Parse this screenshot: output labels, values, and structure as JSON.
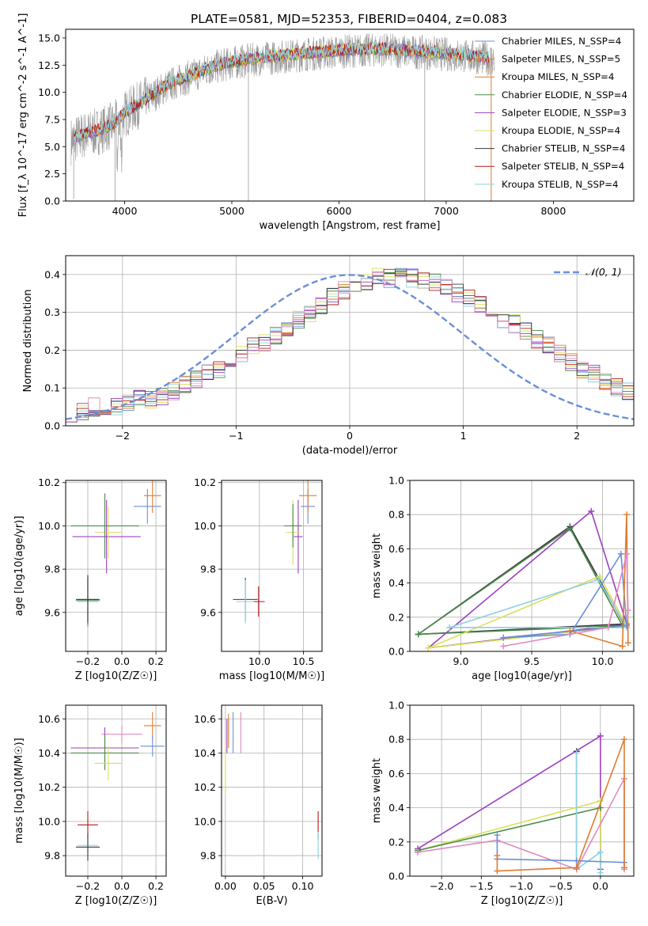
{
  "figure": {
    "title": "PLATE=0581, MJD=52353, FIBERID=0404, z=0.083"
  },
  "colors": {
    "c0": "#6a8fd8",
    "c1": "#e07b2e",
    "c2": "#9a9a9a",
    "c3": "#4a8a4a",
    "c4": "#9c3fc0",
    "c5": "#d7e05a",
    "c6": "#3a3a3a",
    "c7": "#b21a1a",
    "c8": "#8fd0e0"
  },
  "chart_data": [
    {
      "id": "spectrum",
      "type": "line",
      "xlabel": "wavelength [Angstrom, rest frame]",
      "ylabel": "Flux [f_λ 10^-17 erg cm^-2 s^-1 A^-1]",
      "xlim": [
        3450,
        8750
      ],
      "ylim": [
        0,
        15.8
      ],
      "xticks": [
        4000,
        5000,
        6000,
        7000,
        8000
      ],
      "yticks": [
        0.0,
        2.5,
        5.0,
        7.5,
        10.0,
        12.5,
        15.0
      ],
      "legend_position": "top-right",
      "series": [
        {
          "name": "Chabrier MILES, N_SSP=4"
        },
        {
          "name": "Salpeter MILES, N_SSP=5"
        },
        {
          "name": "Kroupa MILES, N_SSP=4"
        },
        {
          "name": "Chabrier ELODIE, N_SSP=4"
        },
        {
          "name": "Salpeter ELODIE, N_SSP=3"
        },
        {
          "name": "Kroupa ELODIE, N_SSP=4"
        },
        {
          "name": "Chabrier STELIB, N_SSP=4"
        },
        {
          "name": "Salpeter STELIB, N_SSP=4"
        },
        {
          "name": "Kroupa STELIB, N_SSP=4"
        }
      ],
      "model_continuum": {
        "x": [
          3500,
          3600,
          3750,
          3900,
          4000,
          4200,
          4400,
          4600,
          4800,
          5000,
          5200,
          5500,
          5800,
          6100,
          6400,
          6700,
          7000,
          7300,
          7450
        ],
        "y": [
          5.5,
          6.0,
          6.4,
          7.0,
          8.0,
          9.3,
          10.6,
          11.4,
          12.2,
          12.7,
          13.0,
          13.3,
          13.6,
          13.8,
          13.9,
          13.7,
          13.5,
          13.2,
          13.0
        ]
      }
    },
    {
      "id": "residuals",
      "type": "bar",
      "xlabel": "(data-model)/error",
      "ylabel": "Normed distribution",
      "xlim": [
        -2.5,
        2.5
      ],
      "ylim": [
        0,
        0.45
      ],
      "xticks": [
        -2,
        -1,
        0,
        1,
        2
      ],
      "yticks": [
        0.0,
        0.1,
        0.2,
        0.3,
        0.4
      ],
      "legend_entry": "𝒩(0, 1)",
      "legend_position": "top-right",
      "bin_edges_start": -2.5,
      "bin_width": 0.1,
      "hist_base": [
        0.03,
        0.04,
        0.05,
        0.05,
        0.05,
        0.06,
        0.07,
        0.07,
        0.08,
        0.09,
        0.11,
        0.12,
        0.14,
        0.15,
        0.17,
        0.19,
        0.21,
        0.22,
        0.24,
        0.26,
        0.28,
        0.3,
        0.32,
        0.34,
        0.36,
        0.37,
        0.38,
        0.4,
        0.39,
        0.4,
        0.39,
        0.38,
        0.38,
        0.37,
        0.35,
        0.34,
        0.32,
        0.3,
        0.28,
        0.27,
        0.25,
        0.23,
        0.21,
        0.19,
        0.17,
        0.15,
        0.14,
        0.12,
        0.1,
        0.09,
        0.07,
        0.06,
        0.05,
        0.05,
        0.04,
        0.04,
        0.03,
        0.03,
        0.03,
        0.03
      ]
    },
    {
      "id": "age_vs_Z",
      "type": "scatter",
      "xlabel": "Z [log10(Z/Z☉)]",
      "ylabel": "age  [log10(age/yr)]",
      "xlim": [
        -0.33,
        0.26
      ],
      "ylim": [
        9.42,
        10.21
      ],
      "xticks": [
        -0.2,
        0.0,
        0.2
      ],
      "yticks": [
        9.6,
        9.8,
        10.0,
        10.2
      ],
      "points": [
        {
          "c": "c0",
          "x": 0.15,
          "y": 10.09,
          "xerr": 0.08,
          "yerr": 0.08
        },
        {
          "c": "c1",
          "x": 0.18,
          "y": 10.14,
          "xerr": 0.05,
          "yerr": 0.08
        },
        {
          "c": "c4",
          "x": -0.09,
          "y": 9.95,
          "xerr": 0.2,
          "yerr": 0.17
        },
        {
          "c": "c5",
          "x": -0.08,
          "y": 9.97,
          "xerr": 0.08,
          "yerr": 0.12
        },
        {
          "c": "c3",
          "x": -0.1,
          "y": 10.0,
          "xerr": 0.2,
          "yerr": 0.15
        },
        {
          "c": "c6",
          "x": -0.2,
          "y": 9.66,
          "xerr": 0.07,
          "yerr": 0.1
        },
        {
          "c": "c8",
          "x": -0.2,
          "y": 9.65,
          "xerr": 0.06,
          "yerr": 0.1
        },
        {
          "c": "c3",
          "x": -0.2,
          "y": 9.655,
          "xerr": 0.07,
          "yerr": 0.12
        },
        {
          "c": "c6",
          "x": -0.2,
          "y": 9.66,
          "xerr": 0.06,
          "yerr": 0.11
        }
      ]
    },
    {
      "id": "age_vs_mass",
      "type": "scatter",
      "xlabel": "mass [log10(M/M☉)]",
      "ylabel": "",
      "xlim": [
        9.57,
        10.71
      ],
      "ylim": [
        9.42,
        10.21
      ],
      "xticks": [
        10.0,
        10.5
      ],
      "yticks": [
        9.6,
        9.8,
        10.0,
        10.2
      ],
      "points": [
        {
          "c": "c0",
          "x": 10.55,
          "y": 10.09,
          "xerr": 0.08,
          "yerr": 0.08
        },
        {
          "c": "c1",
          "x": 10.55,
          "y": 10.14,
          "xerr": 0.1,
          "yerr": 0.08
        },
        {
          "c": "c4",
          "x": 10.44,
          "y": 9.95,
          "xerr": 0.05,
          "yerr": 0.17
        },
        {
          "c": "c5",
          "x": 10.38,
          "y": 9.97,
          "xerr": 0.08,
          "yerr": 0.15
        },
        {
          "c": "c3",
          "x": 10.38,
          "y": 10.0,
          "xerr": 0.1,
          "yerr": 0.1
        },
        {
          "c": "c7",
          "x": 9.99,
          "y": 9.65,
          "xerr": 0.07,
          "yerr": 0.07
        },
        {
          "c": "c6",
          "x": 9.84,
          "y": 9.66,
          "xerr": 0.14,
          "yerr": 0.1
        },
        {
          "c": "c8",
          "x": 9.84,
          "y": 9.65,
          "xerr": 0.1,
          "yerr": 0.1
        }
      ]
    },
    {
      "id": "massweight_vs_age",
      "type": "line",
      "xlabel": "age  [log10(age/yr)]",
      "ylabel": "mass weight",
      "xlim": [
        8.64,
        10.22
      ],
      "ylim": [
        0,
        1
      ],
      "xticks": [
        9.0,
        9.5,
        10.0
      ],
      "yticks": [
        0.0,
        0.2,
        0.4,
        0.6,
        0.8,
        1.0
      ],
      "series": [
        {
          "c": "c4",
          "x": [
            8.77,
            9.92,
            10.17,
            8.77
          ],
          "y": [
            0.02,
            0.82,
            0.16,
            0.02
          ]
        },
        {
          "c": "c6",
          "x": [
            8.7,
            9.77,
            10.15,
            8.7
          ],
          "y": [
            0.1,
            0.73,
            0.16,
            0.1
          ]
        },
        {
          "c": "c3",
          "x": [
            8.7,
            9.77,
            10.14,
            8.7
          ],
          "y": [
            0.1,
            0.72,
            0.15,
            0.1
          ]
        },
        {
          "c": "c5",
          "x": [
            8.77,
            9.98,
            10.17,
            8.77
          ],
          "y": [
            0.02,
            0.44,
            0.15,
            0.02
          ]
        },
        {
          "c": "c8",
          "x": [
            8.92,
            9.97,
            10.17,
            8.92
          ],
          "y": [
            0.14,
            0.42,
            0.14,
            0.14
          ]
        },
        {
          "c": "c0",
          "x": [
            9.3,
            9.77,
            10.13,
            10.17,
            9.3
          ],
          "y": [
            0.08,
            0.1,
            0.57,
            0.15,
            0.08
          ]
        },
        {
          "c": "c1",
          "x": [
            9.77,
            10.14,
            10.17,
            10.18
          ],
          "y": [
            0.12,
            0.03,
            0.8,
            0.05
          ]
        },
        {
          "c": "i0",
          "x": [
            9.3,
            10.04,
            10.17,
            10.18
          ],
          "y": [
            0.03,
            0.14,
            0.57,
            0.24
          ]
        }
      ]
    },
    {
      "id": "mass_vs_Z",
      "type": "scatter",
      "xlabel": "Z [log10(Z/Z☉)]",
      "ylabel": "mass [log10(M/M☉)]",
      "xlim": [
        -0.33,
        0.26
      ],
      "ylim": [
        9.68,
        10.68
      ],
      "xticks": [
        -0.2,
        0.0,
        0.2
      ],
      "yticks": [
        9.8,
        10.0,
        10.2,
        10.4,
        10.6
      ],
      "points": [
        {
          "c": "c1",
          "x": 0.18,
          "y": 10.56,
          "xerr": 0.05,
          "yerr": 0.08
        },
        {
          "c": "c0",
          "x": 0.18,
          "y": 10.44,
          "xerr": 0.07,
          "yerr": 0.06
        },
        {
          "c": "i0",
          "x": 0.0,
          "y": 10.51,
          "xerr": 0.12,
          "yerr": 0.05
        },
        {
          "c": "c4",
          "x": -0.1,
          "y": 10.43,
          "xerr": 0.2,
          "yerr": 0.12
        },
        {
          "c": "c3",
          "x": -0.1,
          "y": 10.4,
          "xerr": 0.2,
          "yerr": 0.1
        },
        {
          "c": "c5",
          "x": -0.08,
          "y": 10.34,
          "xerr": 0.08,
          "yerr": 0.1
        },
        {
          "c": "c7",
          "x": -0.2,
          "y": 9.98,
          "xerr": 0.06,
          "yerr": 0.08
        },
        {
          "c": "c8",
          "x": -0.2,
          "y": 9.86,
          "xerr": 0.06,
          "yerr": 0.06
        },
        {
          "c": "c6",
          "x": -0.2,
          "y": 9.85,
          "xerr": 0.07,
          "yerr": 0.08
        }
      ]
    },
    {
      "id": "mass_vs_ebv",
      "type": "scatter",
      "xlabel": "E(B-V)",
      "ylabel": "",
      "xlim": [
        -0.005,
        0.125
      ],
      "ylim": [
        9.68,
        10.68
      ],
      "xticks": [
        0.0,
        0.05,
        0.1
      ],
      "yticks": [
        9.8,
        10.0,
        10.2,
        10.4,
        10.6
      ],
      "points": [
        {
          "c": "c4",
          "x": 0.002,
          "y": 10.5,
          "xerr": 0,
          "yerr": 0.1
        },
        {
          "c": "c1",
          "x": 0.004,
          "y": 10.53,
          "xerr": 0,
          "yerr": 0.1
        },
        {
          "c": "c5",
          "x": 0.0,
          "y": 10.3,
          "xerr": 0,
          "yerr": 0.15
        },
        {
          "c": "c0",
          "x": 0.01,
          "y": 10.52,
          "xerr": 0,
          "yerr": 0.12
        },
        {
          "c": "i0",
          "x": 0.02,
          "y": 10.52,
          "xerr": 0,
          "yerr": 0.12
        },
        {
          "c": "c7",
          "x": 0.12,
          "y": 9.98,
          "xerr": 0,
          "yerr": 0.08
        },
        {
          "c": "c8",
          "x": 0.12,
          "y": 9.86,
          "xerr": 0,
          "yerr": 0.08
        }
      ]
    },
    {
      "id": "massweight_vs_Z",
      "type": "line",
      "xlabel": "Z [log10(Z/Z☉)]",
      "ylabel": "mass weight",
      "xlim": [
        -2.4,
        0.42
      ],
      "ylim": [
        0,
        1
      ],
      "xticks": [
        -2.0,
        -1.5,
        -1.0,
        -0.5,
        0.0
      ],
      "yticks": [
        0.0,
        0.2,
        0.4,
        0.6,
        0.8,
        1.0
      ],
      "series": [
        {
          "c": "c4",
          "x": [
            -2.3,
            0.0,
            0.0
          ],
          "y": [
            0.16,
            0.82,
            0.04
          ]
        },
        {
          "c": "c5",
          "x": [
            -2.3,
            0.0,
            0.0
          ],
          "y": [
            0.15,
            0.44,
            0.0
          ]
        },
        {
          "c": "c3",
          "x": [
            -2.3,
            0.0
          ],
          "y": [
            0.15,
            0.4
          ]
        },
        {
          "c": "c6",
          "x": [
            -0.3,
            -0.3
          ],
          "y": [
            0.73,
            0.04
          ]
        },
        {
          "c": "c8",
          "x": [
            -0.3,
            -0.3,
            0.0,
            0.0
          ],
          "y": [
            0.72,
            0.04,
            0.14,
            0.02
          ]
        },
        {
          "c": "i0",
          "x": [
            -2.3,
            -1.3,
            -0.3,
            0.3,
            0.3
          ],
          "y": [
            0.14,
            0.21,
            0.04,
            0.57,
            0.04
          ]
        },
        {
          "c": "c0",
          "x": [
            -1.3,
            -1.3,
            -0.3,
            0.3
          ],
          "y": [
            0.24,
            0.1,
            0.09,
            0.08
          ]
        },
        {
          "c": "c1",
          "x": [
            -1.3,
            -1.3,
            -0.3,
            0.3,
            0.3
          ],
          "y": [
            0.12,
            0.03,
            0.05,
            0.8,
            0.05
          ]
        }
      ]
    }
  ]
}
